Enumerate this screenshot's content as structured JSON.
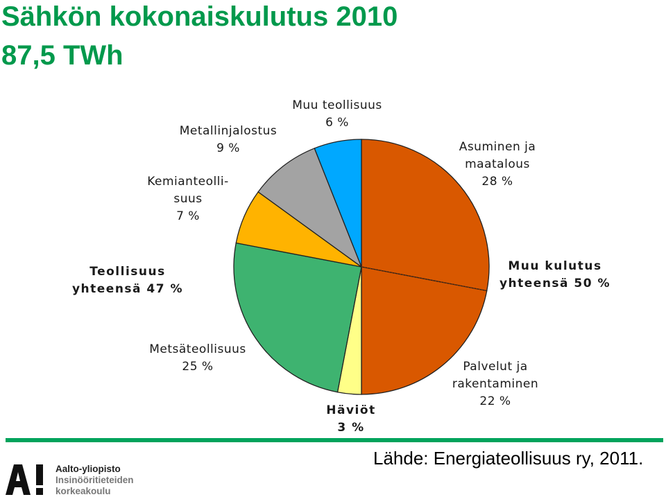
{
  "title_line1": "Sähkön kokonaiskulutus 2010",
  "title_line2": "87,5 TWh",
  "source": "Lähde: Energiateollisuus ry, 2011.",
  "logo": {
    "mark": "A!",
    "line1": "Aalto-yliopisto",
    "line2": "Insinööritieteiden",
    "line3": "korkeakoulu"
  },
  "colors": {
    "accent_green": "#00a35c",
    "title_green": "#00994c"
  },
  "chart_data": {
    "type": "pie",
    "unit": "%",
    "slices": [
      {
        "label": "Asuminen ja maatalous",
        "value": 28,
        "color": "#d95800",
        "text": [
          "Asuminen ja",
          "maatalous",
          "28 %"
        ]
      },
      {
        "label": "Palvelut ja rakentaminen",
        "value": 22,
        "color": "#d95800",
        "text": [
          "Palvelut ja",
          "rakentaminen",
          "22 %"
        ]
      },
      {
        "label": "Häviöt",
        "value": 3,
        "color": "#ffff88",
        "text": [
          "Häviöt",
          "3 %"
        ]
      },
      {
        "label": "Metsäteollisuus",
        "value": 25,
        "color": "#3eb370",
        "text": [
          "Metsäteollisuus",
          "25 %"
        ]
      },
      {
        "label": "Kemianteollisuus",
        "value": 7,
        "color": "#ffb300",
        "text": [
          "Kemianteolli-",
          "suus",
          "7 %"
        ]
      },
      {
        "label": "Metallinjalostus",
        "value": 9,
        "color": "#a3a3a3",
        "text": [
          "Metallinjalostus",
          "9 %"
        ]
      },
      {
        "label": "Muu teollisuus",
        "value": 6,
        "color": "#00a8ff",
        "text": [
          "Muu teollisuus",
          "6 %"
        ]
      }
    ],
    "group_labels": [
      {
        "text": [
          "Muu kulutus",
          "yhteensä 50 %"
        ]
      },
      {
        "text": [
          "Teollisuus",
          "yhteensä 47 %"
        ]
      }
    ]
  }
}
